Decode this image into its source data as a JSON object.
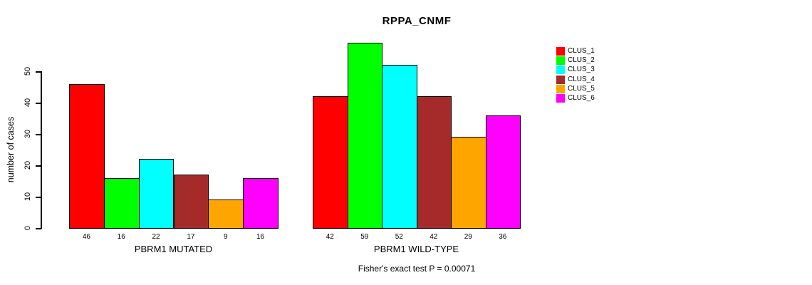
{
  "title": "RPPA_CNMF",
  "footer": "Fisher's exact test P = 0.00071",
  "chart_data": {
    "type": "bar",
    "title": "RPPA_CNMF",
    "xlabel": "",
    "ylabel": "number of cases",
    "ylim": [
      0,
      50
    ],
    "yticks": [
      0,
      10,
      20,
      30,
      40,
      50
    ],
    "grid": false,
    "legend_position": "right",
    "annotation": "Fisher's exact test P = 0.00071",
    "series_labels": [
      "CLUS_1",
      "CLUS_2",
      "CLUS_3",
      "CLUS_4",
      "CLUS_5",
      "CLUS_6"
    ],
    "colors": [
      "#FF0000",
      "#00FF00",
      "#00FFFF",
      "#A52A2A",
      "#FFA500",
      "#FF00FF"
    ],
    "bar_value_labels_shown": true,
    "groups": [
      {
        "label": "PBRM1 MUTATED",
        "values": [
          46,
          16,
          22,
          17,
          9,
          16
        ]
      },
      {
        "label": "PBRM1 WILD-TYPE",
        "values": [
          42,
          59,
          52,
          42,
          29,
          36
        ]
      }
    ]
  }
}
